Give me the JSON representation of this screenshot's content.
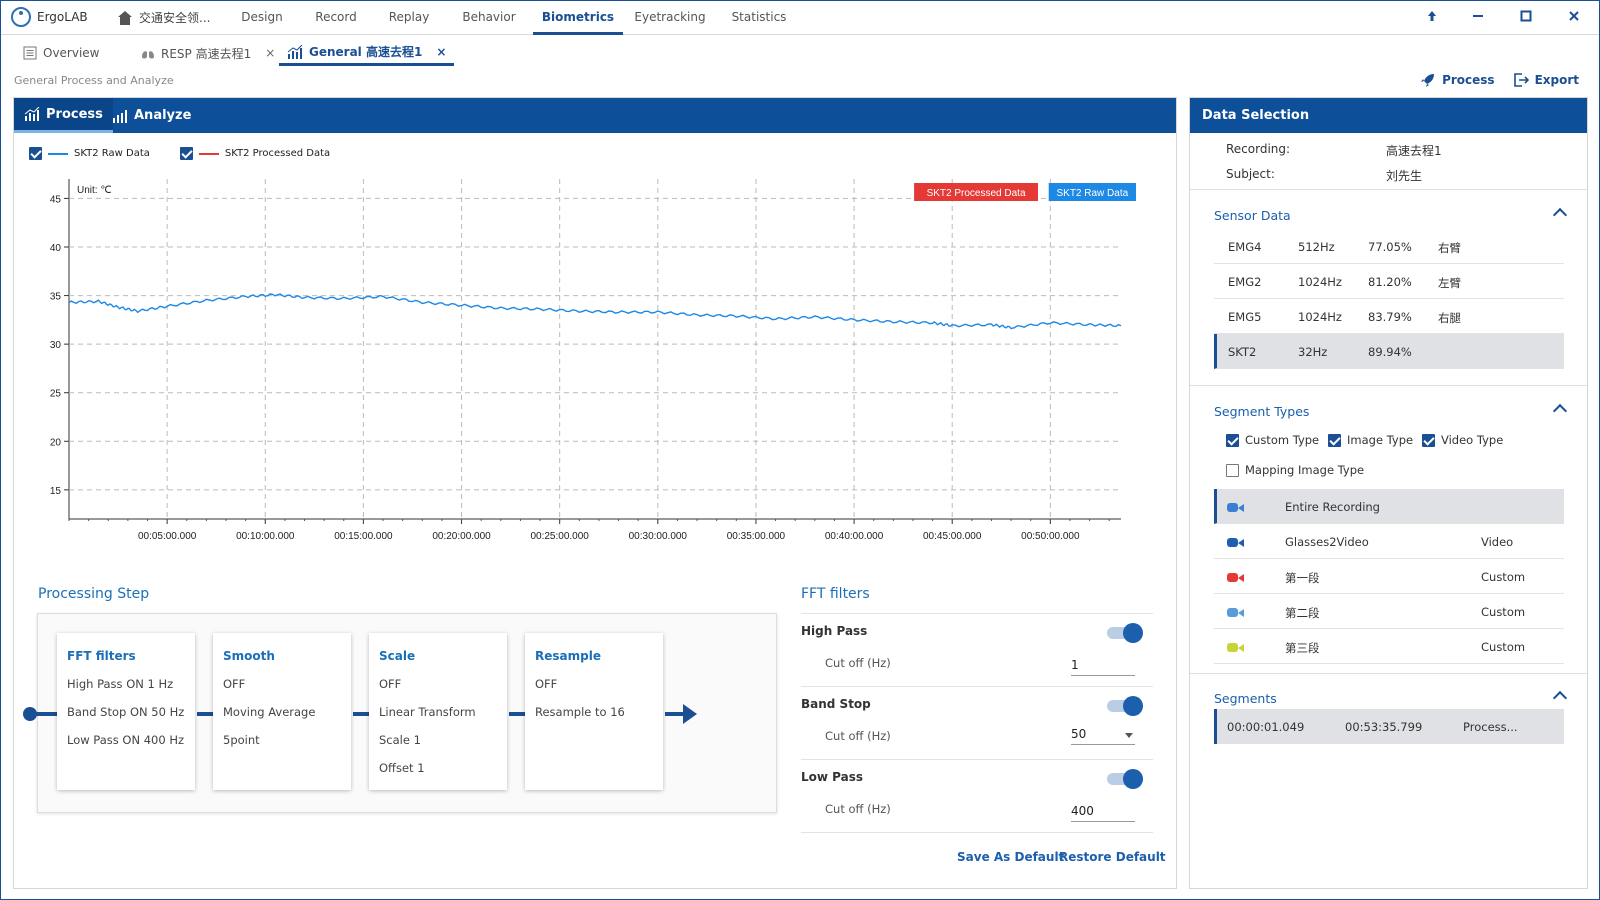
{
  "app": {
    "name": "ErgoLAB",
    "project": "交通安全领..."
  },
  "nav": [
    {
      "label": "Design"
    },
    {
      "label": "Record"
    },
    {
      "label": "Replay"
    },
    {
      "label": "Behavior"
    },
    {
      "label": "Biometrics"
    },
    {
      "label": "Eyetracking"
    },
    {
      "label": "Statistics"
    }
  ],
  "active_nav": "Biometrics",
  "window_controls": [
    "up-arrow-icon",
    "minimize-icon",
    "maximize-icon",
    "close-icon"
  ],
  "doc_tabs": [
    {
      "label": "Overview",
      "icon": "list-icon",
      "closable": false
    },
    {
      "label": "RESP 高速去程1",
      "icon": "lungs-icon",
      "closable": true
    },
    {
      "label": "General 高速去程1",
      "icon": "bar-chart-icon",
      "closable": true,
      "active": true
    }
  ],
  "close_glyph": "×",
  "breadcrumb": "General Process and Analyze",
  "top_actions": {
    "process": "Process",
    "export": "Export"
  },
  "main_tabs": {
    "process": "Process",
    "analyze": "Analyze"
  },
  "legend": {
    "raw": "SKT2 Raw Data",
    "processed": "SKT2 Processed Data",
    "raw_checked": true,
    "processed_checked": true
  },
  "chart_data": {
    "type": "line",
    "unit_label": "Unit: ℃",
    "ylim": [
      12,
      47
    ],
    "y_ticks": [
      "45",
      "40",
      "35",
      "30",
      "25",
      "20",
      "15"
    ],
    "x_ticks": [
      "00:05:00.000",
      "00:10:00.000",
      "00:15:00.000",
      "00:20:00.000",
      "00:25:00.000",
      "00:30:00.000",
      "00:35:00.000",
      "00:40:00.000",
      "00:45:00.000",
      "00:50:00.000"
    ],
    "x_range_min": [
      0,
      53.6
    ],
    "grid": true,
    "tags": {
      "processed": "SKT2 Processed Data",
      "raw": "SKT2 Raw Data"
    },
    "series": [
      {
        "name": "SKT2 Raw Data",
        "color": "#1e88e5",
        "x": [
          0,
          1.5,
          2.5,
          3.5,
          5,
          7,
          9,
          10.5,
          12,
          14,
          16,
          18,
          20,
          22,
          24,
          26,
          28,
          30,
          32,
          34,
          36,
          38,
          40,
          42,
          44,
          45,
          47,
          48,
          50,
          52,
          53.6
        ],
        "y": [
          34.3,
          34.4,
          33.8,
          33.4,
          33.9,
          34.5,
          34.9,
          35.1,
          34.8,
          34.7,
          34.9,
          34.3,
          34.0,
          33.7,
          33.6,
          33.4,
          33.3,
          33.3,
          33.0,
          32.9,
          32.6,
          32.8,
          32.5,
          32.3,
          32.2,
          31.9,
          32.0,
          31.7,
          32.2,
          32.0,
          31.9
        ]
      },
      {
        "name": "SKT2 Processed Data",
        "color": "#e53935",
        "x": [],
        "y": []
      }
    ]
  },
  "processing_step": {
    "title": "Processing Step",
    "steps": [
      {
        "title": "FFT filters",
        "lines": [
          "High Pass  ON  1 Hz",
          "Band Stop  ON  50 Hz",
          "Low Pass  ON  400 Hz"
        ]
      },
      {
        "title": "Smooth",
        "lines": [
          "OFF",
          "Moving Average",
          "5point"
        ]
      },
      {
        "title": "Scale",
        "lines": [
          "OFF",
          "Linear Transform",
          "Scale  1",
          "Offset  1"
        ]
      },
      {
        "title": "Resample",
        "lines": [
          "OFF",
          "Resample to 16"
        ]
      }
    ]
  },
  "fft": {
    "title": "FFT filters",
    "cutoff_label": "Cut off (Hz)",
    "filters": [
      {
        "name": "High Pass",
        "on": true,
        "value": "1"
      },
      {
        "name": "Band Stop",
        "on": true,
        "value": "50"
      },
      {
        "name": "Low Pass",
        "on": true,
        "value": "400"
      }
    ],
    "save_default": "Save As Default",
    "restore_default": "Restore Default"
  },
  "data_selection": {
    "title": "Data Selection",
    "recording_label": "Recording:",
    "recording_value": "高速去程1",
    "subject_label": "Subject:",
    "subject_value": "刘先生",
    "sensor_title": "Sensor Data",
    "sensors": [
      {
        "name": "EMG4",
        "rate": "512Hz",
        "quality": "77.05%",
        "location": "右臂"
      },
      {
        "name": "EMG2",
        "rate": "1024Hz",
        "quality": "81.20%",
        "location": "左臂"
      },
      {
        "name": "EMG5",
        "rate": "1024Hz",
        "quality": "83.79%",
        "location": "右腿"
      },
      {
        "name": "SKT2",
        "rate": "32Hz",
        "quality": "89.94%",
        "location": ""
      }
    ],
    "selected_sensor": 3,
    "segment_types_title": "Segment Types",
    "type_filters": [
      {
        "label": "Custom Type",
        "checked": true
      },
      {
        "label": "Image Type",
        "checked": true
      },
      {
        "label": "Video Type",
        "checked": true
      },
      {
        "label": "Mapping Image Type",
        "checked": false
      }
    ],
    "segment_types": [
      {
        "name": "Entire Recording",
        "kind": "",
        "color": "#3b7fd4"
      },
      {
        "name": "Glasses2Video",
        "kind": "Video",
        "color": "#1f5fb0"
      },
      {
        "name": "第一段",
        "kind": "Custom",
        "color": "#e53935"
      },
      {
        "name": "第二段",
        "kind": "Custom",
        "color": "#5b9bdc"
      },
      {
        "name": "第三段",
        "kind": "Custom",
        "color": "#c6d43a"
      }
    ],
    "segments_title": "Segments",
    "segments": [
      {
        "start": "00:00:01.049",
        "end": "00:53:35.799",
        "status": "Process..."
      }
    ]
  }
}
